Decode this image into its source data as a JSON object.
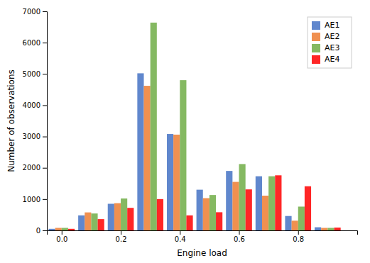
{
  "chart_data": {
    "type": "bar",
    "xlabel": "Engine load",
    "ylabel": "Number of observations",
    "x": [
      0.0,
      0.1,
      0.2,
      0.3,
      0.4,
      0.5,
      0.6,
      0.7,
      0.8,
      0.9
    ],
    "series": [
      {
        "name": "AE1",
        "color": "#4472C4",
        "values": [
          50,
          480,
          850,
          5020,
          3080,
          1300,
          1900,
          1730,
          460,
          100
        ]
      },
      {
        "name": "AE2",
        "color": "#ED7D31",
        "values": [
          80,
          575,
          870,
          4620,
          3060,
          1030,
          1550,
          1110,
          310,
          80
        ]
      },
      {
        "name": "AE3",
        "color": "#70AD47",
        "values": [
          80,
          540,
          1020,
          6640,
          4800,
          1130,
          2120,
          1730,
          760,
          80
        ]
      },
      {
        "name": "AE4",
        "color": "#FF0000",
        "values": [
          50,
          360,
          720,
          1000,
          480,
          580,
          1310,
          1760,
          1410,
          90
        ]
      }
    ],
    "xlim": [
      -0.05,
      1.0
    ],
    "xticks": [
      {
        "value": 0.0,
        "label": "0.0"
      },
      0.2,
      0.4,
      0.6,
      0.8
    ],
    "ylim": [
      0,
      7000
    ],
    "yticks": [
      0,
      1000,
      2000,
      3000,
      4000,
      5000,
      6000,
      7000
    ],
    "grid": false,
    "legend": "upper right"
  }
}
